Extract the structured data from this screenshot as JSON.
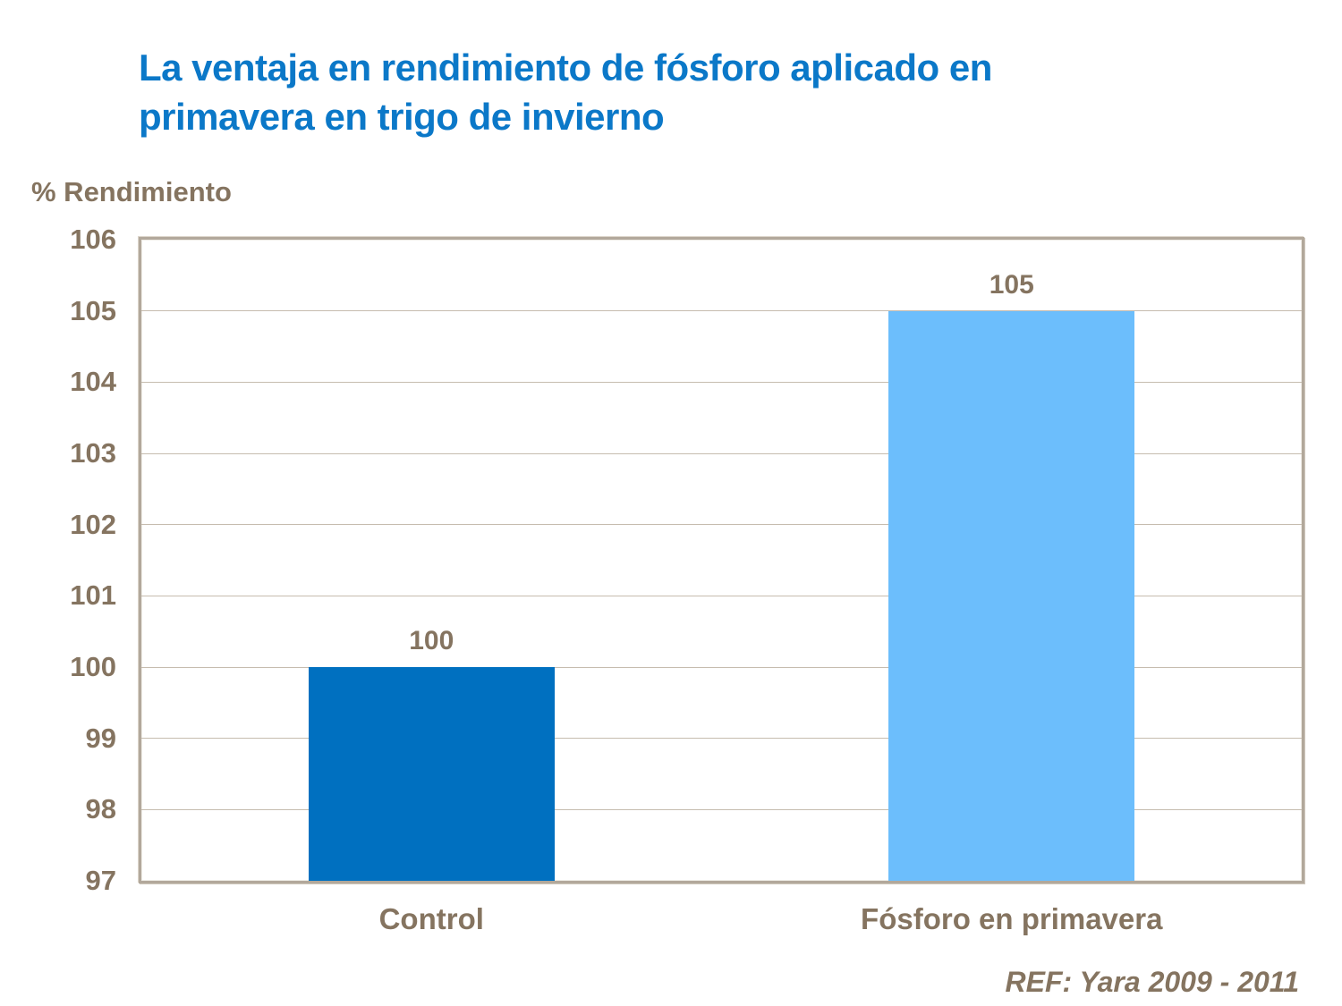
{
  "slide": {
    "title": {
      "line1": "La ventaja en rendimiento de fósforo aplicado en",
      "line2": "primavera en trigo de invierno"
    },
    "footer": "REF: Yara 2009 - 2011"
  },
  "chart_data": {
    "type": "bar",
    "title": "La ventaja en rendimiento de fósforo aplicado en primavera en trigo de invierno",
    "xlabel": "",
    "ylabel": "% Rendimiento",
    "categories": [
      "Control",
      "Fósforo en primavera"
    ],
    "values": [
      100,
      105
    ],
    "data_labels": [
      "100",
      "105"
    ],
    "bar_colors": [
      "#0070C0",
      "#6CBEFC"
    ],
    "ylim": [
      97,
      106
    ],
    "yticks": [
      97,
      98,
      99,
      100,
      101,
      102,
      103,
      104,
      105,
      106
    ],
    "grid": true,
    "legend": false,
    "annotation": "REF: Yara 2009 - 2011",
    "colors": {
      "title_text": "#0b78c8",
      "axis_text": "#857460",
      "gridline": "#c6bcaf",
      "plot_border": "#b2a89b",
      "background": "#ffffff"
    }
  }
}
